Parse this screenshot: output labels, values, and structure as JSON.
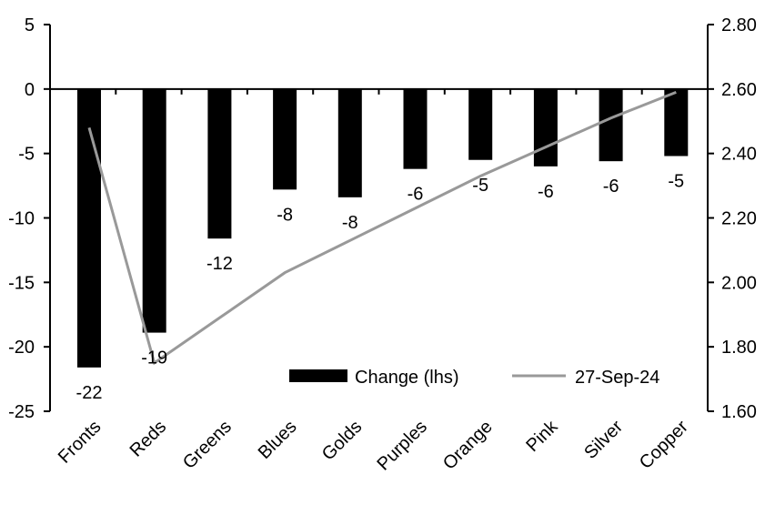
{
  "chart_data": {
    "type": "bar+line",
    "categories": [
      "Fronts",
      "Reds",
      "Greens",
      "Blues",
      "Golds",
      "Purples",
      "Orange",
      "Pink",
      "Silver",
      "Copper"
    ],
    "series": [
      {
        "name": "Change (lhs)",
        "type": "bar",
        "axis": "left",
        "color": "#000000",
        "values": [
          -21.6,
          -18.9,
          -11.6,
          -7.8,
          -8.4,
          -6.2,
          -5.5,
          -6.0,
          -5.6,
          -5.2
        ],
        "labels": [
          "-22",
          "-19",
          "-12",
          "-8",
          "-8",
          "-6",
          "-5",
          "-6",
          "-6",
          "-5"
        ]
      },
      {
        "name": "27-Sep-24",
        "type": "line",
        "axis": "right",
        "color": "#999999",
        "values": [
          2.48,
          1.75,
          1.89,
          2.03,
          2.13,
          2.23,
          2.33,
          2.42,
          2.51,
          2.59
        ]
      }
    ],
    "left_axis": {
      "range": [
        -25,
        5
      ],
      "ticks": [
        "5",
        "0",
        "-5",
        "-10",
        "-15",
        "-20",
        "-25"
      ]
    },
    "right_axis": {
      "range": [
        1.6,
        2.8
      ],
      "ticks": [
        "2.80",
        "2.60",
        "2.40",
        "2.20",
        "2.00",
        "1.80",
        "1.60"
      ]
    },
    "grid": false,
    "legend": "bottom-right"
  }
}
